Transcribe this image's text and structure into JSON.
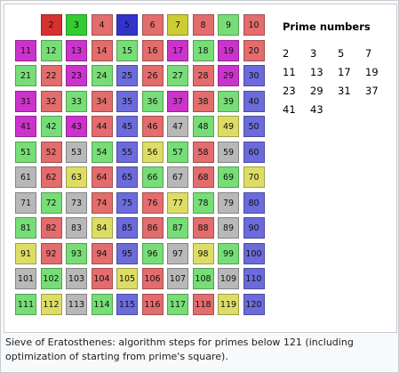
{
  "grid": {
    "columns": 10,
    "first_number": 2,
    "cells": [
      {
        "n": 2,
        "c": "#d63131"
      },
      {
        "n": 3,
        "c": "#33cc33"
      },
      {
        "n": 4,
        "c": "#e36c6c"
      },
      {
        "n": 5,
        "c": "#3333cc"
      },
      {
        "n": 6,
        "c": "#e36c6c"
      },
      {
        "n": 7,
        "c": "#cccc33"
      },
      {
        "n": 8,
        "c": "#e36c6c"
      },
      {
        "n": 9,
        "c": "#77dd77"
      },
      {
        "n": 10,
        "c": "#e36c6c"
      },
      {
        "n": 11,
        "c": "#cc33cc"
      },
      {
        "n": 12,
        "c": "#77dd77"
      },
      {
        "n": 13,
        "c": "#cc33cc"
      },
      {
        "n": 14,
        "c": "#e36c6c"
      },
      {
        "n": 15,
        "c": "#77dd77"
      },
      {
        "n": 16,
        "c": "#e36c6c"
      },
      {
        "n": 17,
        "c": "#cc33cc"
      },
      {
        "n": 18,
        "c": "#77dd77"
      },
      {
        "n": 19,
        "c": "#cc33cc"
      },
      {
        "n": 20,
        "c": "#e36c6c"
      },
      {
        "n": 21,
        "c": "#77dd77"
      },
      {
        "n": 22,
        "c": "#e36c6c"
      },
      {
        "n": 23,
        "c": "#cc33cc"
      },
      {
        "n": 24,
        "c": "#77dd77"
      },
      {
        "n": 25,
        "c": "#6b6bdb"
      },
      {
        "n": 26,
        "c": "#e36c6c"
      },
      {
        "n": 27,
        "c": "#77dd77"
      },
      {
        "n": 28,
        "c": "#e36c6c"
      },
      {
        "n": 29,
        "c": "#cc33cc"
      },
      {
        "n": 30,
        "c": "#6b6bdb"
      },
      {
        "n": 31,
        "c": "#cc33cc"
      },
      {
        "n": 32,
        "c": "#e36c6c"
      },
      {
        "n": 33,
        "c": "#77dd77"
      },
      {
        "n": 34,
        "c": "#e36c6c"
      },
      {
        "n": 35,
        "c": "#6b6bdb"
      },
      {
        "n": 36,
        "c": "#77dd77"
      },
      {
        "n": 37,
        "c": "#cc33cc"
      },
      {
        "n": 38,
        "c": "#e36c6c"
      },
      {
        "n": 39,
        "c": "#77dd77"
      },
      {
        "n": 40,
        "c": "#6b6bdb"
      },
      {
        "n": 41,
        "c": "#cc33cc"
      },
      {
        "n": 42,
        "c": "#77dd77"
      },
      {
        "n": 43,
        "c": "#cc33cc"
      },
      {
        "n": 44,
        "c": "#e36c6c"
      },
      {
        "n": 45,
        "c": "#6b6bdb"
      },
      {
        "n": 46,
        "c": "#e36c6c"
      },
      {
        "n": 47,
        "c": "#b8b8b8"
      },
      {
        "n": 48,
        "c": "#77dd77"
      },
      {
        "n": 49,
        "c": "#dddd66"
      },
      {
        "n": 50,
        "c": "#6b6bdb"
      },
      {
        "n": 51,
        "c": "#77dd77"
      },
      {
        "n": 52,
        "c": "#e36c6c"
      },
      {
        "n": 53,
        "c": "#b8b8b8"
      },
      {
        "n": 54,
        "c": "#77dd77"
      },
      {
        "n": 55,
        "c": "#6b6bdb"
      },
      {
        "n": 56,
        "c": "#dddd66"
      },
      {
        "n": 57,
        "c": "#77dd77"
      },
      {
        "n": 58,
        "c": "#e36c6c"
      },
      {
        "n": 59,
        "c": "#b8b8b8"
      },
      {
        "n": 60,
        "c": "#6b6bdb"
      },
      {
        "n": 61,
        "c": "#b8b8b8"
      },
      {
        "n": 62,
        "c": "#e36c6c"
      },
      {
        "n": 63,
        "c": "#dddd66"
      },
      {
        "n": 64,
        "c": "#e36c6c"
      },
      {
        "n": 65,
        "c": "#6b6bdb"
      },
      {
        "n": 66,
        "c": "#77dd77"
      },
      {
        "n": 67,
        "c": "#b8b8b8"
      },
      {
        "n": 68,
        "c": "#e36c6c"
      },
      {
        "n": 69,
        "c": "#77dd77"
      },
      {
        "n": 70,
        "c": "#dddd66"
      },
      {
        "n": 71,
        "c": "#b8b8b8"
      },
      {
        "n": 72,
        "c": "#77dd77"
      },
      {
        "n": 73,
        "c": "#b8b8b8"
      },
      {
        "n": 74,
        "c": "#e36c6c"
      },
      {
        "n": 75,
        "c": "#6b6bdb"
      },
      {
        "n": 76,
        "c": "#e36c6c"
      },
      {
        "n": 77,
        "c": "#dddd66"
      },
      {
        "n": 78,
        "c": "#77dd77"
      },
      {
        "n": 79,
        "c": "#b8b8b8"
      },
      {
        "n": 80,
        "c": "#6b6bdb"
      },
      {
        "n": 81,
        "c": "#77dd77"
      },
      {
        "n": 82,
        "c": "#e36c6c"
      },
      {
        "n": 83,
        "c": "#b8b8b8"
      },
      {
        "n": 84,
        "c": "#dddd66"
      },
      {
        "n": 85,
        "c": "#6b6bdb"
      },
      {
        "n": 86,
        "c": "#e36c6c"
      },
      {
        "n": 87,
        "c": "#77dd77"
      },
      {
        "n": 88,
        "c": "#e36c6c"
      },
      {
        "n": 89,
        "c": "#b8b8b8"
      },
      {
        "n": 90,
        "c": "#6b6bdb"
      },
      {
        "n": 91,
        "c": "#dddd66"
      },
      {
        "n": 92,
        "c": "#e36c6c"
      },
      {
        "n": 93,
        "c": "#77dd77"
      },
      {
        "n": 94,
        "c": "#e36c6c"
      },
      {
        "n": 95,
        "c": "#6b6bdb"
      },
      {
        "n": 96,
        "c": "#77dd77"
      },
      {
        "n": 97,
        "c": "#b8b8b8"
      },
      {
        "n": 98,
        "c": "#dddd66"
      },
      {
        "n": 99,
        "c": "#77dd77"
      },
      {
        "n": 100,
        "c": "#6b6bdb"
      },
      {
        "n": 101,
        "c": "#b8b8b8"
      },
      {
        "n": 102,
        "c": "#77dd77"
      },
      {
        "n": 103,
        "c": "#b8b8b8"
      },
      {
        "n": 104,
        "c": "#e36c6c"
      },
      {
        "n": 105,
        "c": "#dddd66"
      },
      {
        "n": 106,
        "c": "#e36c6c"
      },
      {
        "n": 107,
        "c": "#b8b8b8"
      },
      {
        "n": 108,
        "c": "#77dd77"
      },
      {
        "n": 109,
        "c": "#b8b8b8"
      },
      {
        "n": 110,
        "c": "#6b6bdb"
      },
      {
        "n": 111,
        "c": "#77dd77"
      },
      {
        "n": 112,
        "c": "#dddd66"
      },
      {
        "n": 113,
        "c": "#b8b8b8"
      },
      {
        "n": 114,
        "c": "#77dd77"
      },
      {
        "n": 115,
        "c": "#6b6bdb"
      },
      {
        "n": 116,
        "c": "#e36c6c"
      },
      {
        "n": 117,
        "c": "#77dd77"
      },
      {
        "n": 118,
        "c": "#e36c6c"
      },
      {
        "n": 119,
        "c": "#dddd66"
      },
      {
        "n": 120,
        "c": "#6b6bdb"
      }
    ]
  },
  "primes": {
    "title": "Prime numbers",
    "values": [
      "2",
      "3",
      "5",
      "7",
      "11",
      "13",
      "17",
      "19",
      "23",
      "29",
      "31",
      "37",
      "41",
      "43"
    ]
  },
  "caption": {
    "text": "Sieve of Eratosthenes: algorithm steps for primes below 121 (including optimization of starting from prime's square)."
  }
}
